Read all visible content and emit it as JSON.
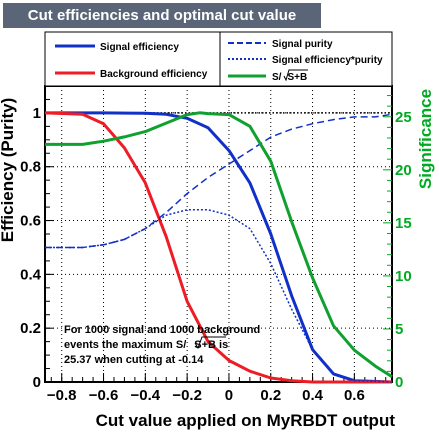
{
  "title": "Cut efficiencies and optimal cut value",
  "colors": {
    "signal": "#1030c8",
    "background": "#ee1c24",
    "significance": "#10a030",
    "right_axis": "#00aa22",
    "title_bg": "#5a6678"
  },
  "legend": {
    "left": [
      {
        "label": "Signal efficiency",
        "style": "solid",
        "color": "#1030c8"
      },
      {
        "label": "Background efficiency",
        "style": "solid",
        "color": "#ee1c24"
      }
    ],
    "right": [
      {
        "label": "Signal purity",
        "style": "dashed",
        "color": "#1030c8"
      },
      {
        "label": "Signal efficiency*purity",
        "style": "dotted",
        "color": "#1030c8"
      },
      {
        "label_prefix": "S/",
        "label_sqrt": "S+B",
        "style": "solid",
        "color": "#10a030"
      }
    ]
  },
  "annotation": {
    "line1": "For 1000 signal and 1000 background",
    "line2_prefix": "events the maximum S/",
    "line2_sqrt": "S+B",
    "line2_suffix": " is",
    "line3": "25.37 when cutting at -0.14"
  },
  "chart_data": {
    "type": "line",
    "xlabel": "Cut value applied on MyRBDT output",
    "ylabel": "Efficiency (Purity)",
    "y2label": "Significance",
    "xlim": [
      -0.88,
      0.78
    ],
    "ylim": [
      0,
      1.1
    ],
    "y2lim": [
      0,
      27.9
    ],
    "x_ticks": [
      -0.8,
      -0.6,
      -0.4,
      -0.2,
      0,
      0.2,
      0.4,
      0.6
    ],
    "x_tick_labels": [
      "−0.8",
      "−0.6",
      "−0.4",
      "−0.2",
      "0",
      "0.2",
      "0.4",
      "0.6"
    ],
    "y_ticks": [
      0,
      0.2,
      0.4,
      0.6,
      0.8,
      1
    ],
    "y_tick_labels": [
      "0",
      "0.2",
      "0.4",
      "0.6",
      "0.8",
      "1"
    ],
    "y2_ticks": [
      0,
      5,
      10,
      15,
      20,
      25
    ],
    "y2_tick_labels": [
      "0",
      "5",
      "10",
      "15",
      "20",
      "25"
    ],
    "reference_line": {
      "y": 1,
      "style": "dotted"
    },
    "series": [
      {
        "name": "Signal efficiency",
        "axis": "left",
        "color": "#1030c8",
        "style": "solid",
        "x": [
          -0.88,
          -0.6,
          -0.4,
          -0.3,
          -0.2,
          -0.1,
          0.0,
          0.1,
          0.2,
          0.3,
          0.4,
          0.5,
          0.6,
          0.78
        ],
        "y": [
          1.0,
          1.0,
          0.999,
          0.995,
          0.98,
          0.945,
          0.86,
          0.74,
          0.55,
          0.32,
          0.12,
          0.03,
          0.005,
          0.0
        ]
      },
      {
        "name": "Background efficiency",
        "axis": "left",
        "color": "#ee1c24",
        "style": "solid",
        "x": [
          -0.88,
          -0.7,
          -0.6,
          -0.5,
          -0.4,
          -0.3,
          -0.2,
          -0.1,
          0.0,
          0.1,
          0.2,
          0.3,
          0.4,
          0.78
        ],
        "y": [
          1.0,
          0.995,
          0.96,
          0.87,
          0.74,
          0.54,
          0.3,
          0.15,
          0.08,
          0.04,
          0.015,
          0.005,
          0.0,
          0.0
        ]
      },
      {
        "name": "Signal purity",
        "axis": "left",
        "color": "#1030c8",
        "style": "dashed",
        "x": [
          -0.88,
          -0.7,
          -0.6,
          -0.5,
          -0.4,
          -0.3,
          -0.2,
          -0.1,
          0.0,
          0.1,
          0.2,
          0.3,
          0.4,
          0.5,
          0.6,
          0.7,
          0.78
        ],
        "y": [
          0.5,
          0.5,
          0.51,
          0.53,
          0.57,
          0.63,
          0.7,
          0.76,
          0.81,
          0.86,
          0.91,
          0.94,
          0.96,
          0.975,
          0.985,
          0.985,
          0.995
        ]
      },
      {
        "name": "Signal efficiency*purity",
        "axis": "left",
        "color": "#1030c8",
        "style": "dotted",
        "x": [
          -0.88,
          -0.7,
          -0.6,
          -0.5,
          -0.4,
          -0.3,
          -0.2,
          -0.1,
          0.0,
          0.1,
          0.2,
          0.3,
          0.4,
          0.5,
          0.6,
          0.78
        ],
        "y": [
          0.5,
          0.5,
          0.51,
          0.53,
          0.57,
          0.62,
          0.64,
          0.64,
          0.62,
          0.57,
          0.44,
          0.27,
          0.12,
          0.03,
          0.005,
          0.0
        ]
      },
      {
        "name": "S/sqrt(S+B)",
        "axis": "right",
        "color": "#10a030",
        "style": "solid",
        "x": [
          -0.88,
          -0.8,
          -0.7,
          -0.6,
          -0.5,
          -0.4,
          -0.3,
          -0.2,
          -0.14,
          -0.1,
          0.0,
          0.1,
          0.2,
          0.3,
          0.4,
          0.5,
          0.6,
          0.7,
          0.78
        ],
        "y": [
          22.4,
          22.4,
          22.4,
          22.7,
          23.1,
          23.6,
          24.4,
          25.2,
          25.37,
          25.3,
          25.2,
          24.1,
          20.8,
          15.1,
          9.8,
          5.3,
          3.0,
          1.5,
          0.5
        ]
      }
    ]
  }
}
